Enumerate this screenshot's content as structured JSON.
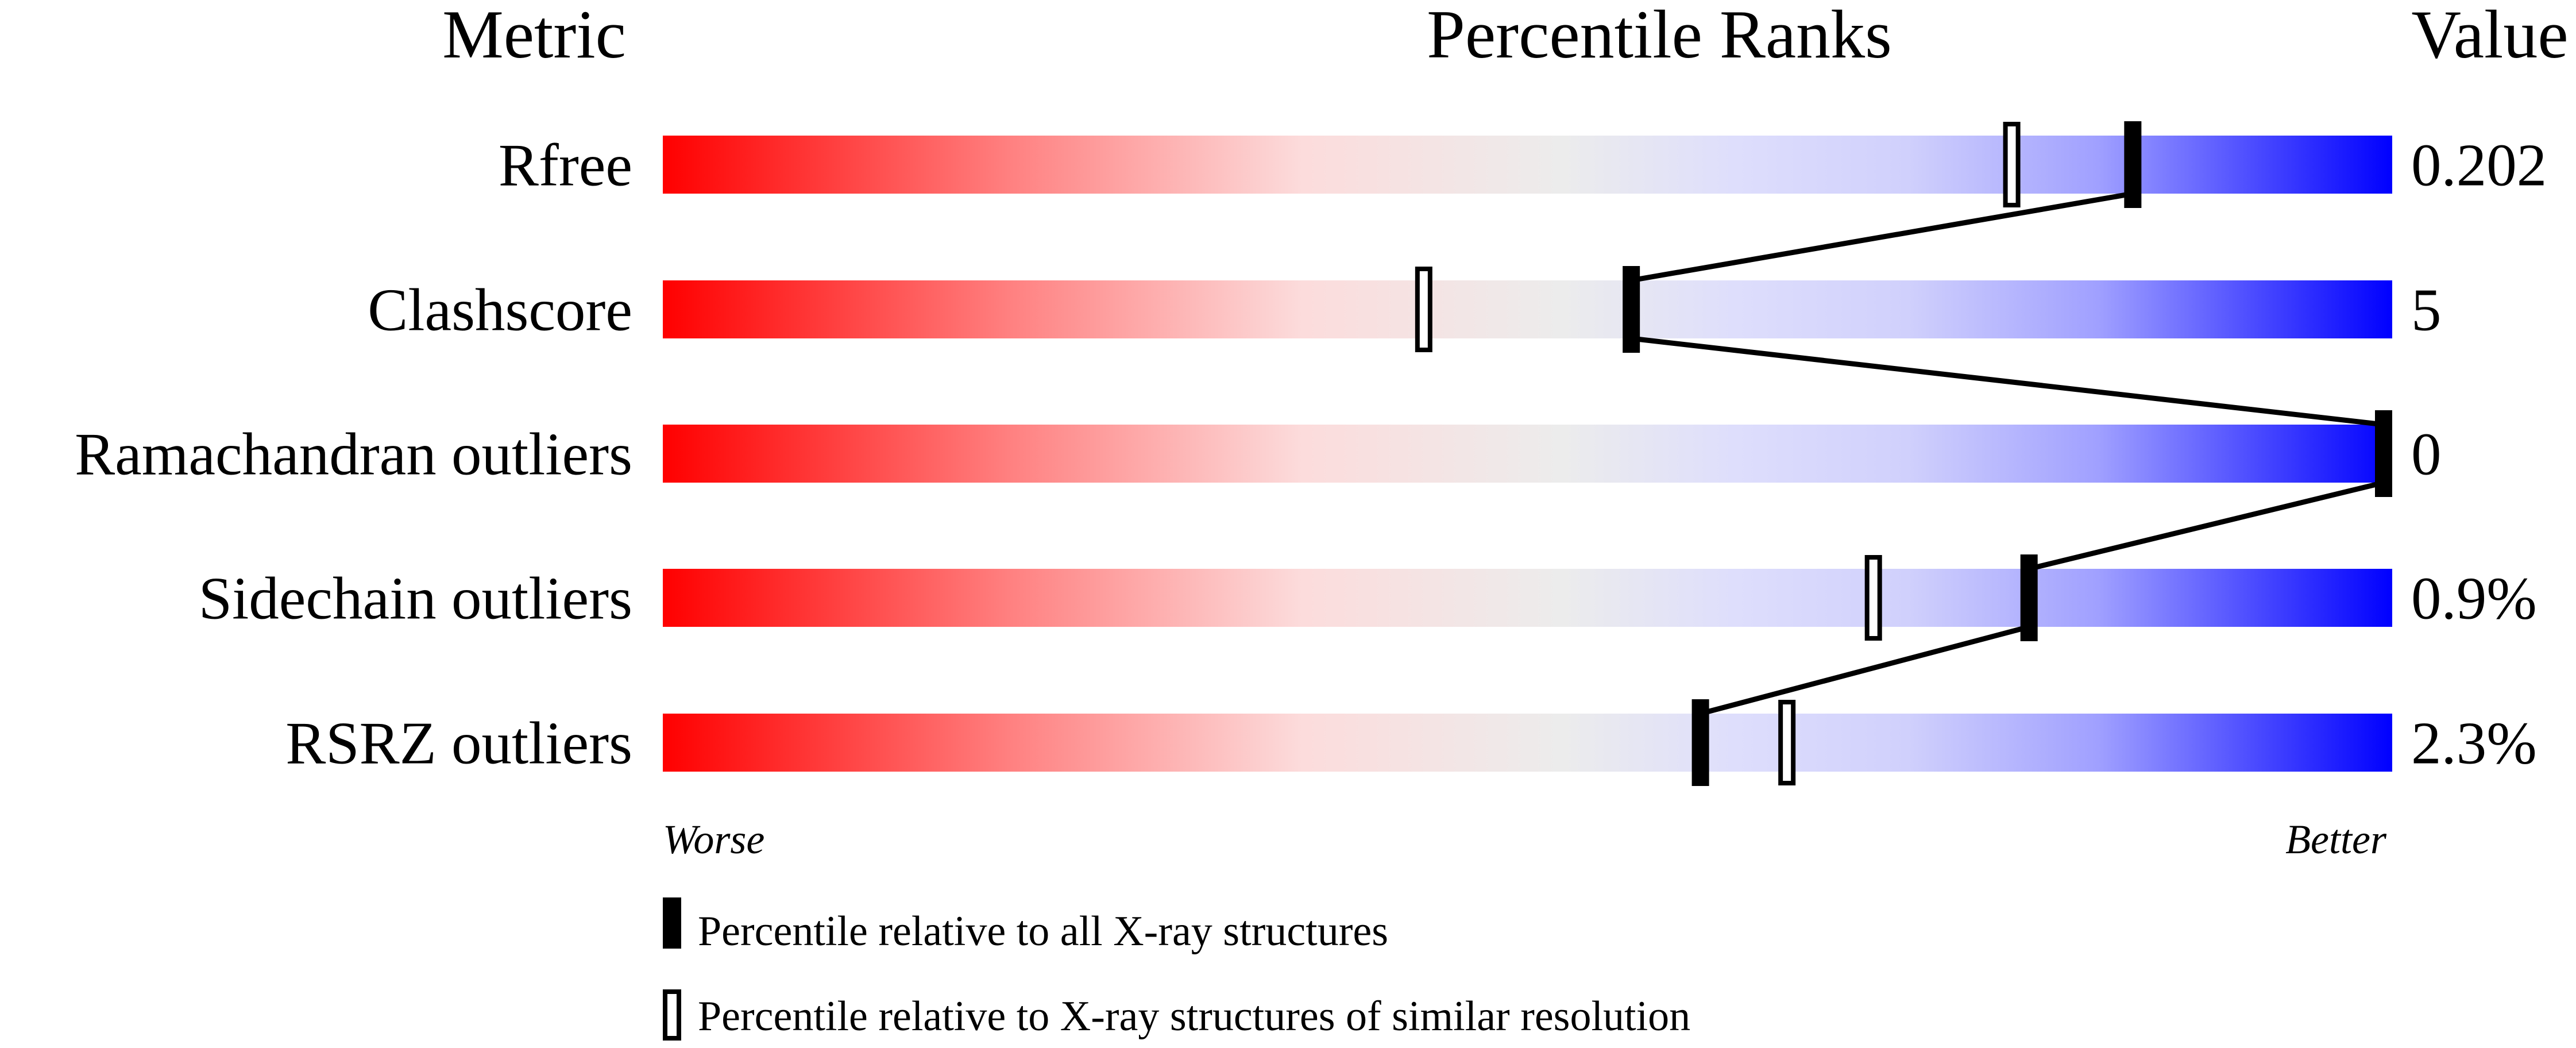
{
  "chart_data": {
    "type": "percentile-slider",
    "headers": {
      "metric": "Metric",
      "percentile": "Percentile Ranks",
      "value": "Value"
    },
    "xlim": [
      0,
      100
    ],
    "rows": [
      {
        "metric": "Rfree",
        "value": "0.202",
        "percentile_all": 85,
        "percentile_similar": 78
      },
      {
        "metric": "Clashscore",
        "value": "5",
        "percentile_all": 56,
        "percentile_similar": 44
      },
      {
        "metric": "Ramachandran outliers",
        "value": "0",
        "percentile_all": 100,
        "percentile_similar": 100
      },
      {
        "metric": "Sidechain outliers",
        "value": "0.9%",
        "percentile_all": 79,
        "percentile_similar": 70
      },
      {
        "metric": "RSRZ outliers",
        "value": "2.3%",
        "percentile_all": 60,
        "percentile_similar": 65
      }
    ],
    "axis": {
      "left": "Worse",
      "right": "Better"
    },
    "legend": [
      {
        "marker": "filled",
        "label": "Percentile relative to all X-ray structures"
      },
      {
        "marker": "open",
        "label": "Percentile relative to X-ray structures of similar resolution"
      }
    ],
    "colors": {
      "worse": "#ff0000",
      "middle": "#ececec",
      "better": "#0000ff",
      "marker": "#000000"
    }
  }
}
